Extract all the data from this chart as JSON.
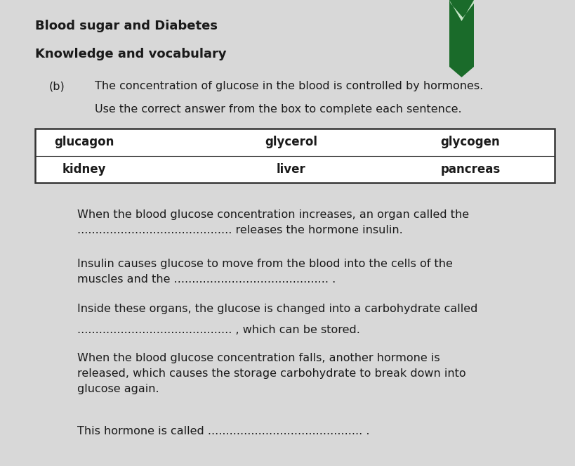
{
  "bg_color": "#d8d8d8",
  "page_color": "#e8e8e8",
  "title1": "Blood sugar and Diabetes",
  "title2": "Knowledge and vocabulary",
  "label_b": "(b)",
  "line1": "The concentration of glucose in the blood is controlled by hormones.",
  "line2": "Use the correct answer from the box to complete each sentence.",
  "box_row1": [
    "glucagon",
    "glycerol",
    "glycogen"
  ],
  "box_row2": [
    "kidney",
    "liver",
    "pancreas"
  ],
  "para1_line1": "When the blood glucose concentration increases, an organ called the",
  "para1_line2": "........................................... releases the hormone insulin.",
  "para2_line1": "Insulin causes glucose to move from the blood into the cells of the",
  "para2_line2": "muscles and the ........................................... .",
  "para3_line1": "Inside these organs, the glucose is changed into a carbohydrate called",
  "para4_line1": "........................................... , which can be stored.",
  "para5_line1": "When the blood glucose concentration falls, another hormone is",
  "para5_line2": "released, which causes the storage carbohydrate to break down into",
  "para5_line3": "glucose again.",
  "para6_line1": "This hormone is called ........................................... .",
  "ribbon_color_dark": "#1a6b2a",
  "ribbon_color_mid": "#4a9a5a",
  "text_color": "#1a1a1a",
  "box_border_color": "#333333",
  "font_size_title": 13,
  "font_size_subtitle": 13,
  "font_size_body": 11.5,
  "font_size_box": 12
}
